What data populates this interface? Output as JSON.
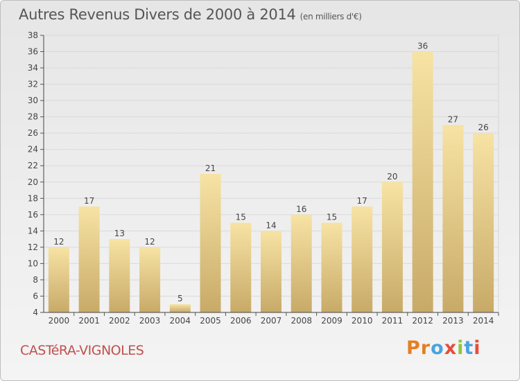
{
  "header": {
    "title": "Autres Revenus Divers de 2000 à 2014",
    "unit": "(en milliers d'€)"
  },
  "footer": {
    "commune": "CASTéRA-VIGNOLES",
    "brand": "Proxiti"
  },
  "colors": {
    "bar_light": "#f7e3a4",
    "bar_dark": "#c8aa68",
    "brand": [
      "#e67e22",
      "#e67e22",
      "#4aa3df",
      "#e74c3c",
      "#8cc63f",
      "#4aa3df",
      "#e74c3c"
    ]
  },
  "chart_data": {
    "type": "bar",
    "title": "Autres Revenus Divers de 2000 à 2014",
    "subtitle": "(en milliers d'€)",
    "categories": [
      "2000",
      "2001",
      "2002",
      "2003",
      "2004",
      "2005",
      "2006",
      "2007",
      "2008",
      "2009",
      "2010",
      "2011",
      "2012",
      "2013",
      "2014"
    ],
    "values": [
      12,
      17,
      13,
      12,
      5,
      21,
      15,
      14,
      16,
      15,
      17,
      20,
      36,
      27,
      26
    ],
    "ylim": [
      4,
      38
    ],
    "yticks": [
      4,
      6,
      8,
      10,
      12,
      14,
      16,
      18,
      20,
      22,
      24,
      26,
      28,
      30,
      32,
      34,
      36,
      38
    ],
    "grid": true,
    "data_labels": true
  }
}
